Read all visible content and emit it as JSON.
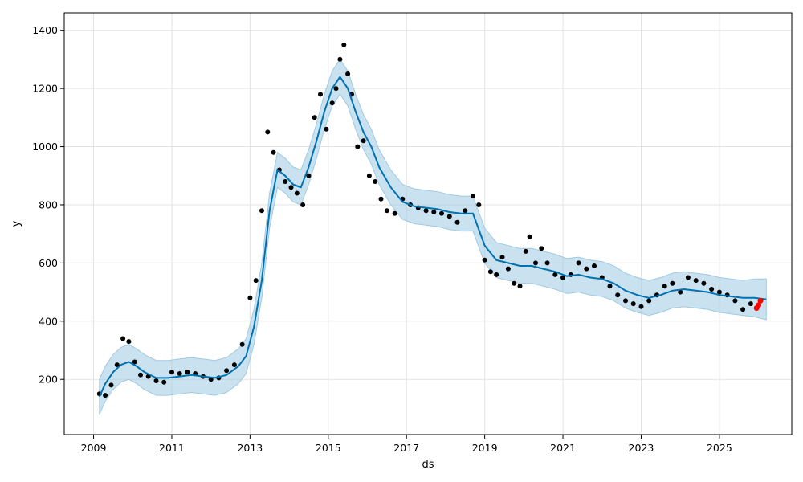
{
  "chart_data": {
    "type": "scatter",
    "title": "",
    "xlabel": "ds",
    "ylabel": "y",
    "xlim": [
      2008.25,
      2026.85
    ],
    "ylim": [
      10,
      1460
    ],
    "grid": true,
    "x_ticks": [
      "2009",
      "2011",
      "2013",
      "2015",
      "2017",
      "2019",
      "2021",
      "2023",
      "2025"
    ],
    "y_ticks": [
      "200",
      "400",
      "600",
      "800",
      "1000",
      "1200",
      "1400"
    ],
    "colors": {
      "observed": "#000000",
      "forecast_line": "#0072B2",
      "uncertainty_band": "#9ecae1",
      "recent_points": "#ff0000"
    },
    "series": [
      {
        "role": "observed",
        "x": [
          2009.15,
          2009.3,
          2009.45,
          2009.6,
          2009.75,
          2009.9,
          2010.05,
          2010.2,
          2010.4,
          2010.6,
          2010.8,
          2011.0,
          2011.2,
          2011.4,
          2011.6,
          2011.8,
          2012.0,
          2012.2,
          2012.4,
          2012.6,
          2012.8,
          2013.0,
          2013.15,
          2013.3,
          2013.45,
          2013.6,
          2013.75,
          2013.9,
          2014.05,
          2014.2,
          2014.35,
          2014.5,
          2014.65,
          2014.8,
          2014.95,
          2015.1,
          2015.2,
          2015.3,
          2015.4,
          2015.5,
          2015.6,
          2015.75,
          2015.9,
          2016.05,
          2016.2,
          2016.35,
          2016.5,
          2016.7,
          2016.9,
          2017.1,
          2017.3,
          2017.5,
          2017.7,
          2017.9,
          2018.1,
          2018.3,
          2018.5,
          2018.7,
          2018.85,
          2019.0,
          2019.15,
          2019.3,
          2019.45,
          2019.6,
          2019.75,
          2019.9,
          2020.05,
          2020.15,
          2020.3,
          2020.45,
          2020.6,
          2020.8,
          2021.0,
          2021.2,
          2021.4,
          2021.6,
          2021.8,
          2022.0,
          2022.2,
          2022.4,
          2022.6,
          2022.8,
          2023.0,
          2023.2,
          2023.4,
          2023.6,
          2023.8,
          2024.0,
          2024.2,
          2024.4,
          2024.6,
          2024.8,
          2025.0,
          2025.2,
          2025.4,
          2025.6,
          2025.8
        ],
        "y": [
          150,
          145,
          180,
          250,
          340,
          330,
          260,
          215,
          210,
          195,
          190,
          225,
          220,
          225,
          220,
          210,
          200,
          205,
          230,
          250,
          320,
          480,
          540,
          780,
          1050,
          980,
          920,
          880,
          860,
          840,
          800,
          900,
          1100,
          1180,
          1060,
          1150,
          1200,
          1300,
          1350,
          1250,
          1180,
          1000,
          1020,
          900,
          880,
          820,
          780,
          770,
          820,
          800,
          790,
          780,
          775,
          770,
          760,
          740,
          780,
          830,
          800,
          610,
          570,
          560,
          620,
          580,
          530,
          520,
          640,
          690,
          600,
          650,
          600,
          560,
          550,
          560,
          600,
          580,
          590,
          550,
          520,
          490,
          470,
          460,
          450,
          470,
          490,
          520,
          530,
          500,
          550,
          540,
          530,
          510,
          500,
          490,
          470,
          440,
          460
        ]
      },
      {
        "role": "recent",
        "x": [
          2025.95,
          2026.0,
          2026.05
        ],
        "y": [
          445,
          455,
          470
        ]
      },
      {
        "role": "forecast",
        "x": [
          2009.15,
          2009.3,
          2009.5,
          2009.7,
          2009.9,
          2010.1,
          2010.3,
          2010.6,
          2010.9,
          2011.2,
          2011.5,
          2011.8,
          2012.1,
          2012.4,
          2012.7,
          2012.9,
          2013.1,
          2013.3,
          2013.5,
          2013.7,
          2013.9,
          2014.1,
          2014.3,
          2014.5,
          2014.7,
          2014.9,
          2015.1,
          2015.3,
          2015.5,
          2015.7,
          2015.9,
          2016.1,
          2016.3,
          2016.6,
          2016.9,
          2017.2,
          2017.5,
          2017.8,
          2018.1,
          2018.4,
          2018.7,
          2019.0,
          2019.3,
          2019.6,
          2019.9,
          2020.2,
          2020.5,
          2020.8,
          2021.1,
          2021.4,
          2021.7,
          2022.0,
          2022.3,
          2022.6,
          2022.9,
          2023.2,
          2023.5,
          2023.8,
          2024.1,
          2024.4,
          2024.7,
          2025.0,
          2025.3,
          2025.6,
          2025.9,
          2026.2
        ],
        "y": [
          140,
          185,
          225,
          250,
          260,
          245,
          225,
          205,
          205,
          210,
          215,
          210,
          205,
          215,
          245,
          280,
          380,
          540,
          780,
          920,
          900,
          870,
          860,
          930,
          1020,
          1120,
          1200,
          1240,
          1200,
          1120,
          1050,
          1000,
          930,
          860,
          810,
          795,
          790,
          785,
          775,
          770,
          770,
          660,
          610,
          600,
          590,
          590,
          580,
          570,
          555,
          560,
          550,
          545,
          530,
          505,
          490,
          480,
          490,
          505,
          510,
          505,
          500,
          490,
          485,
          480,
          480,
          475
        ],
        "lower": [
          80,
          125,
          165,
          190,
          200,
          185,
          165,
          145,
          145,
          150,
          155,
          150,
          145,
          155,
          185,
          220,
          320,
          480,
          720,
          860,
          840,
          810,
          800,
          870,
          960,
          1060,
          1140,
          1180,
          1140,
          1060,
          990,
          940,
          870,
          800,
          750,
          735,
          730,
          725,
          715,
          710,
          710,
          600,
          550,
          540,
          530,
          530,
          520,
          510,
          495,
          500,
          490,
          485,
          470,
          445,
          430,
          420,
          430,
          445,
          450,
          445,
          440,
          430,
          425,
          420,
          415,
          405
        ],
        "upper": [
          200,
          245,
          285,
          310,
          320,
          305,
          285,
          265,
          265,
          270,
          275,
          270,
          265,
          275,
          305,
          340,
          440,
          600,
          840,
          980,
          960,
          930,
          920,
          990,
          1080,
          1180,
          1260,
          1300,
          1260,
          1180,
          1110,
          1060,
          990,
          920,
          870,
          855,
          850,
          845,
          835,
          830,
          830,
          720,
          670,
          660,
          650,
          650,
          640,
          630,
          615,
          620,
          610,
          605,
          590,
          565,
          550,
          540,
          550,
          565,
          570,
          565,
          560,
          550,
          545,
          540,
          545,
          545
        ]
      }
    ]
  }
}
